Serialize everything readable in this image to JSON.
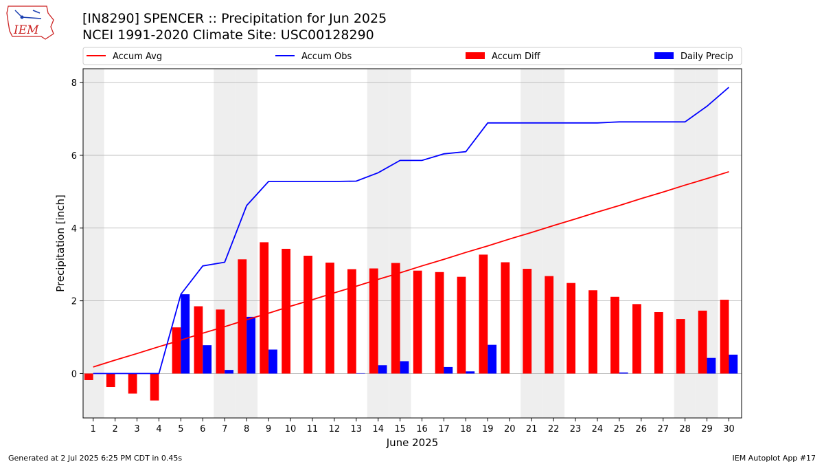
{
  "header": {
    "title": "[IN8290] SPENCER :: Precipitation for Jun 2025",
    "subtitle": "NCEI 1991-2020 Climate Site: USC00128290",
    "logo_text": "IEM"
  },
  "footer": {
    "left": "Generated at 2 Jul 2025 6:25 PM CDT in 0.45s",
    "right": "IEM Autoplot App #17"
  },
  "colors": {
    "accum_avg": "#ff0000",
    "accum_obs": "#0000ff",
    "accum_diff": "#ff0000",
    "daily_precip": "#0000ff",
    "weekend_band": "#eeeeee",
    "grid": "#b0b0b0"
  },
  "chart_data": {
    "type": "bar",
    "xlabel": "June 2025",
    "ylabel": "Precipitation [inch]",
    "ylim": [
      -1.22,
      8.38
    ],
    "yticks": [
      0,
      2,
      4,
      6,
      8
    ],
    "grid": "horizontal",
    "legend_position": "top",
    "days": [
      1,
      2,
      3,
      4,
      5,
      6,
      7,
      8,
      9,
      10,
      11,
      12,
      13,
      14,
      15,
      16,
      17,
      18,
      19,
      20,
      21,
      22,
      23,
      24,
      25,
      26,
      27,
      28,
      29,
      30
    ],
    "weekend_days": [
      1,
      7,
      8,
      14,
      15,
      21,
      22,
      28,
      29
    ],
    "legend": [
      "Accum Avg",
      "Accum Obs",
      "Accum Diff",
      "Daily Precip"
    ],
    "series": [
      {
        "name": "Accum Avg",
        "kind": "line",
        "values": [
          0.18,
          0.37,
          0.55,
          0.74,
          0.92,
          1.11,
          1.29,
          1.48,
          1.66,
          1.85,
          2.03,
          2.22,
          2.4,
          2.59,
          2.77,
          2.96,
          3.14,
          3.33,
          3.51,
          3.7,
          3.88,
          4.07,
          4.25,
          4.44,
          4.62,
          4.81,
          4.99,
          5.18,
          5.36,
          5.55
        ]
      },
      {
        "name": "Accum Obs",
        "kind": "line",
        "values": [
          0,
          0,
          0,
          0,
          2.18,
          2.96,
          3.06,
          4.62,
          5.28,
          5.28,
          5.28,
          5.28,
          5.29,
          5.52,
          5.86,
          5.86,
          6.04,
          6.1,
          6.89,
          6.89,
          6.89,
          6.89,
          6.89,
          6.89,
          6.92,
          6.92,
          6.92,
          6.92,
          7.35,
          7.87
        ]
      },
      {
        "name": "Accum Diff",
        "kind": "bar",
        "values": [
          -0.18,
          -0.37,
          -0.55,
          -0.74,
          1.27,
          1.85,
          1.76,
          3.14,
          3.61,
          3.43,
          3.24,
          3.05,
          2.87,
          2.89,
          3.04,
          2.83,
          2.79,
          2.66,
          3.27,
          3.06,
          2.88,
          2.68,
          2.49,
          2.29,
          2.11,
          1.91,
          1.69,
          1.5,
          1.73,
          2.03
        ]
      },
      {
        "name": "Daily Precip",
        "kind": "bar",
        "values": [
          0,
          0,
          0,
          0,
          2.18,
          0.78,
          0.1,
          1.56,
          0.66,
          0,
          0,
          0,
          0.01,
          0.23,
          0.34,
          0,
          0.18,
          0.06,
          0.79,
          0,
          0,
          0,
          0,
          0,
          0.03,
          0,
          0,
          0,
          0.43,
          0.52
        ]
      }
    ]
  }
}
